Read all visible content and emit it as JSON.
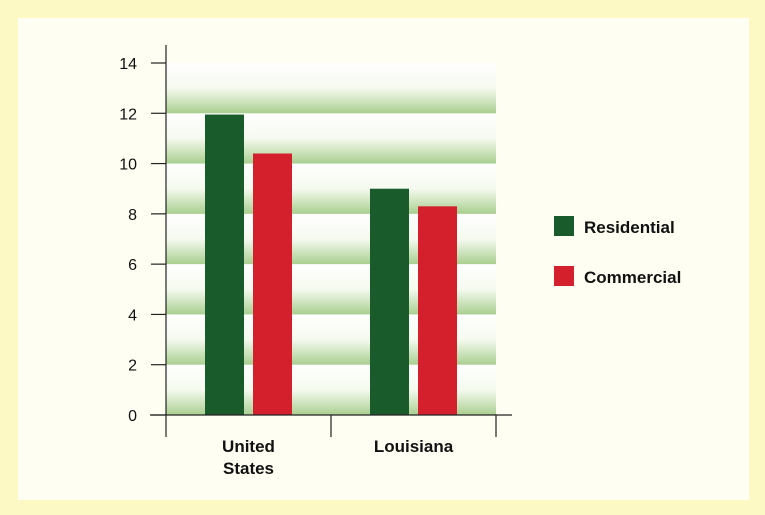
{
  "chart_data": {
    "type": "bar",
    "categories": [
      [
        "United",
        "States"
      ],
      [
        "Louisiana"
      ]
    ],
    "series": [
      {
        "name": "Residential",
        "values": [
          11.95,
          9.0
        ],
        "color": "#1a5b2c"
      },
      {
        "name": "Commercial",
        "values": [
          10.4,
          8.3
        ],
        "color": "#d4202c"
      }
    ],
    "yticks": [
      0,
      2,
      4,
      6,
      8,
      10,
      12,
      14
    ],
    "ylim": [
      0,
      14
    ],
    "legend_position": "right",
    "grid": "gradient-bands",
    "title": "",
    "xlabel": "",
    "ylabel": ""
  }
}
